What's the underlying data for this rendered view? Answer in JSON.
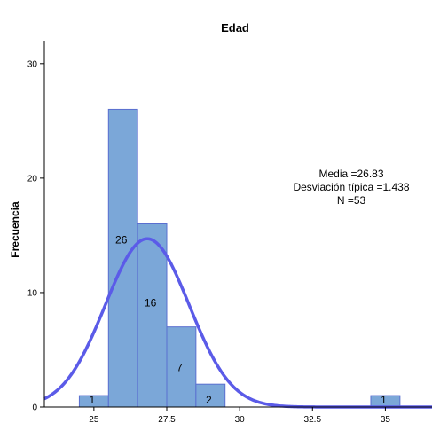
{
  "chart_data": {
    "type": "bar",
    "subtype": "histogram",
    "title": "Edad",
    "xlabel": "",
    "ylabel": "Frecuencia",
    "xlim": [
      23.3,
      36.6
    ],
    "ylim": [
      0,
      32
    ],
    "xticks": [
      25,
      27.5,
      30,
      32.5,
      35
    ],
    "yticks": [
      0,
      10,
      20,
      30
    ],
    "bins": [
      {
        "x0": 24.5,
        "x1": 25.5,
        "value": 1,
        "label": "1"
      },
      {
        "x0": 25.5,
        "x1": 26.5,
        "value": 26,
        "label": "26"
      },
      {
        "x0": 26.5,
        "x1": 27.5,
        "value": 16,
        "label": "16"
      },
      {
        "x0": 27.5,
        "x1": 28.5,
        "value": 7,
        "label": "7"
      },
      {
        "x0": 28.5,
        "x1": 29.5,
        "value": 2,
        "label": "2"
      },
      {
        "x0": 34.5,
        "x1": 35.5,
        "value": 1,
        "label": "1"
      }
    ],
    "normal_curve": {
      "mean": 26.83,
      "sd": 1.438,
      "n": 53,
      "bin_width": 1
    },
    "stats": [
      "Media =26.83",
      "Desviación típica =1.438",
      "N =53"
    ],
    "colors": {
      "bar_fill": "#7ba7d8",
      "bar_stroke": "#5a6fd0",
      "curve": "#5b5be8"
    },
    "grid": false
  }
}
